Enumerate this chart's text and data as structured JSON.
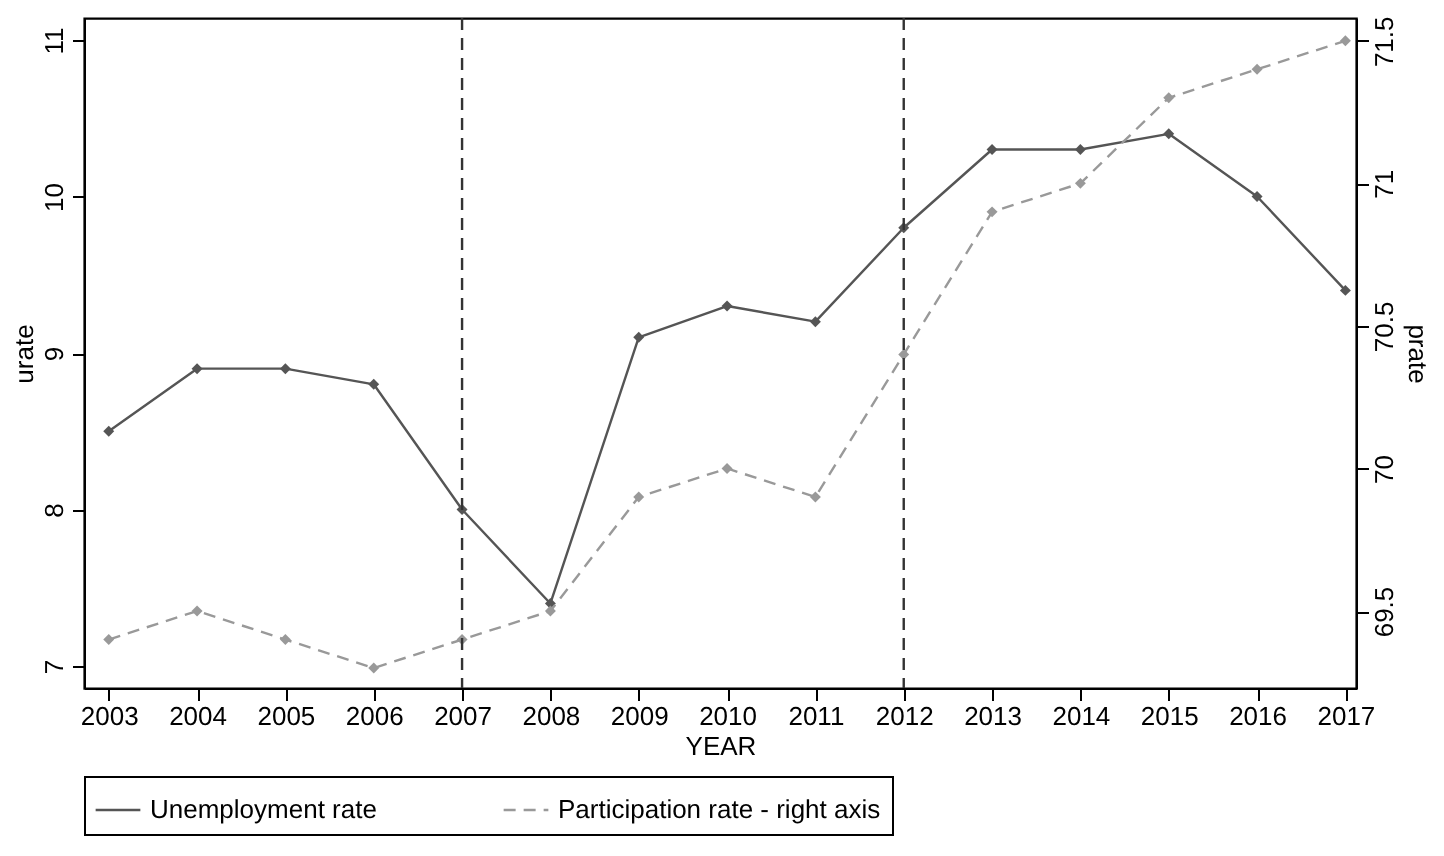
{
  "chart_data": {
    "type": "line",
    "xlabel": "YEAR",
    "ylabel": "urate",
    "y2label": "prate",
    "x": [
      2003,
      2004,
      2005,
      2006,
      2007,
      2008,
      2009,
      2010,
      2011,
      2012,
      2013,
      2014,
      2015,
      2016,
      2017
    ],
    "xlim": [
      2002.72,
      2017.12
    ],
    "xticks": [
      2003,
      2004,
      2005,
      2006,
      2007,
      2008,
      2009,
      2010,
      2011,
      2012,
      2013,
      2014,
      2015,
      2016,
      2017
    ],
    "ylim": [
      6.86,
      11.14
    ],
    "yticks": [
      7,
      8,
      9,
      10,
      11
    ],
    "y2lim": [
      69.23,
      71.58
    ],
    "y2ticks": [
      69.5,
      70,
      70.5,
      71,
      71.5
    ],
    "series": [
      {
        "name": "Unemployment rate",
        "color": "#555555",
        "line_style": "solid",
        "values": [
          8.5,
          8.9,
          8.9,
          8.8,
          8.0,
          7.4,
          9.1,
          9.3,
          9.2,
          9.8,
          10.3,
          10.3,
          10.4,
          10.0,
          9.4
        ]
      },
      {
        "name": "Participation rate - right axis",
        "color": "#999999",
        "line_style": "dashed",
        "axis": "y2",
        "values": [
          69.4,
          69.5,
          69.4,
          69.3,
          69.4,
          69.5,
          69.9,
          70.0,
          69.9,
          70.4,
          70.9,
          71.0,
          71.3,
          71.4,
          71.5
        ]
      }
    ],
    "ref_lines": [
      {
        "axis": "x",
        "value": 2007,
        "color": "#333333",
        "line_style": "dashed"
      },
      {
        "axis": "x",
        "value": 2012,
        "color": "#333333",
        "line_style": "dashed"
      }
    ],
    "marker": "diamond",
    "grid": false,
    "legend": "bottom"
  }
}
